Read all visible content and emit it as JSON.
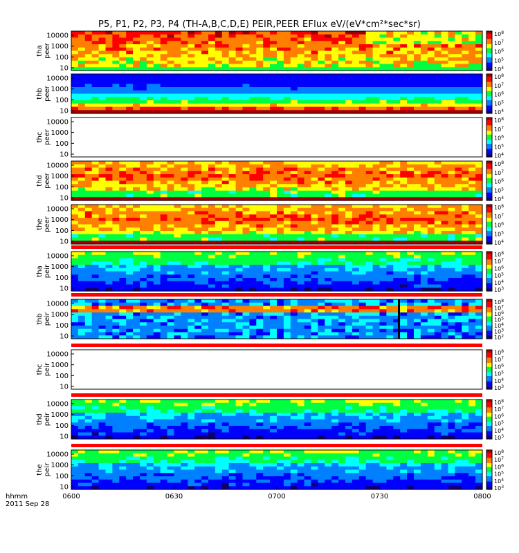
{
  "title": "P5, P1, P2, P3, P4 (TH-A,B,C,D,E) PEIR,PEER EFlux eV/(eV*cm²*sec*sr)",
  "time_axis": {
    "label_line1": "hhmm",
    "label_line2": "2011 Sep 28",
    "ticks": [
      "0600",
      "0630",
      "0700",
      "0730",
      "0800"
    ]
  },
  "colors": {
    "red": "#ff0000",
    "yellow": "#ffff00",
    "green": "#00ff00",
    "cyan": "#00ffff",
    "blue": "#0000ff",
    "navy": "#000080",
    "white": "#ffffff",
    "black": "#000000"
  },
  "colorscale": [
    "#10006a",
    "#0000ff",
    "#0080ff",
    "#00ffff",
    "#00ff40",
    "#ffff00",
    "#ff8000",
    "#ff0000",
    "#a00000"
  ],
  "chart_data": {
    "type": "heatmap",
    "x_range": [
      "0600",
      "0800"
    ],
    "y_axis_scale": "log",
    "y_ticks": [
      "10000",
      "1000",
      "100",
      "10"
    ],
    "panels": [
      {
        "name": "tha peer",
        "label": [
          "tha",
          "peer"
        ],
        "cbar_exp": [
          "8",
          "7",
          "6",
          "5",
          "4"
        ],
        "base": 0.78,
        "style": "electron_hot",
        "empty": false
      },
      {
        "name": "thb peer",
        "label": [
          "thb",
          "peer"
        ],
        "cbar_exp": [
          "8",
          "7",
          "6",
          "5",
          "4"
        ],
        "base": 0.55,
        "style": "layered_blue",
        "empty": false
      },
      {
        "name": "thc peer",
        "label": [
          "thc",
          "peer"
        ],
        "cbar_exp": [
          "8",
          "7",
          "6",
          "5",
          "4"
        ],
        "base": 0,
        "style": "empty",
        "empty": true
      },
      {
        "name": "thd peer",
        "label": [
          "thd",
          "peer"
        ],
        "cbar_exp": [
          "8",
          "7",
          "6",
          "5",
          "4"
        ],
        "base": 0.72,
        "style": "electron",
        "empty": false
      },
      {
        "name": "the peer",
        "label": [
          "the",
          "peer"
        ],
        "cbar_exp": [
          "8",
          "7",
          "6",
          "5",
          "4"
        ],
        "base": 0.72,
        "style": "electron",
        "empty": false
      },
      {
        "name": "tha peir",
        "label": [
          "tha",
          "peir"
        ],
        "cbar_exp": [
          "8",
          "7",
          "6",
          "5",
          "4",
          "3"
        ],
        "base": 0.35,
        "style": "ion",
        "empty": false
      },
      {
        "name": "thb peir",
        "label": [
          "thb",
          "peir"
        ],
        "cbar_exp": [
          "8",
          "7",
          "6",
          "5",
          "4",
          "3",
          "2"
        ],
        "base": 0.3,
        "style": "ion_noisy",
        "empty": false
      },
      {
        "name": "thc peir",
        "label": [
          "thc",
          "peir"
        ],
        "cbar_exp": [
          "8",
          "7",
          "6",
          "5",
          "4",
          "3"
        ],
        "base": 0,
        "style": "empty",
        "empty": true
      },
      {
        "name": "thd peir",
        "label": [
          "thd",
          "peir"
        ],
        "cbar_exp": [
          "8",
          "7",
          "6",
          "5",
          "4",
          "3"
        ],
        "base": 0.35,
        "style": "ion",
        "empty": false
      },
      {
        "name": "the peir",
        "label": [
          "the",
          "peir"
        ],
        "cbar_exp": [
          "8",
          "7",
          "6",
          "5",
          "4",
          "3"
        ],
        "base": 0.35,
        "style": "ion",
        "empty": false
      }
    ]
  }
}
